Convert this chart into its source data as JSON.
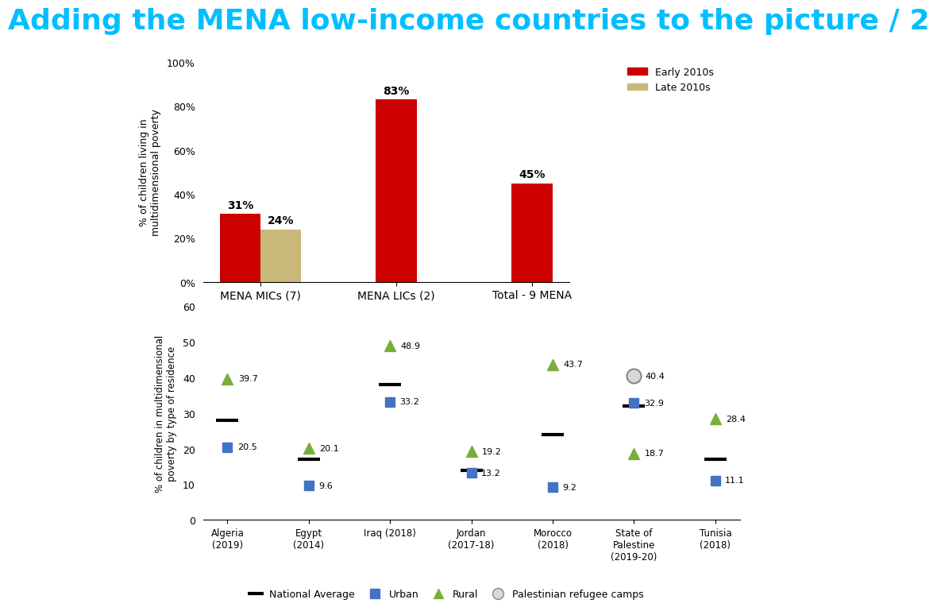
{
  "title": "Adding the MENA low-income countries to the picture / 2",
  "title_color": "#00BFFF",
  "title_fontsize": 26,
  "top_chart": {
    "categories": [
      "MENA MICs (7)",
      "MENA LICs (2)",
      "Total - 9 MENA"
    ],
    "early_2010s": [
      31,
      83,
      45
    ],
    "late_2010s": [
      24,
      null,
      null
    ],
    "early_color": "#CC0000",
    "late_color": "#C8B87A",
    "ylabel": "% of children living in\nmultidimensional poverty",
    "ylim": [
      0,
      100
    ],
    "yticks": [
      0,
      20,
      40,
      60,
      80,
      100
    ],
    "ytick_labels": [
      "0%",
      "20%",
      "40%",
      "60%",
      "80%",
      "100%"
    ],
    "bar_width": 0.3,
    "legend_early": "Early 2010s",
    "legend_late": "Late 2010s"
  },
  "bottom_chart": {
    "countries": [
      "Algeria\n(2019)",
      "Egypt\n(2014)",
      "Iraq (2018)",
      "Jordan\n(2017-18)",
      "Morocco\n(2018)",
      "State of\nPalestine\n(2019-20)",
      "Tunisia\n(2018)"
    ],
    "national_avg": [
      28,
      17,
      38,
      14,
      24,
      32,
      17
    ],
    "urban": [
      20.5,
      9.6,
      33.2,
      13.2,
      9.2,
      32.9,
      11.1
    ],
    "rural": [
      39.7,
      20.1,
      48.9,
      19.2,
      43.7,
      18.7,
      28.4
    ],
    "refugee_camps": [
      null,
      null,
      null,
      null,
      null,
      40.4,
      null
    ],
    "national_color": "#000000",
    "urban_color": "#4472C4",
    "rural_color": "#7AAE3A",
    "refugee_color": "#A0A0A0",
    "ylabel": "% of children in multidimensional\npoverty by type of residence",
    "ylim": [
      0,
      60
    ],
    "yticks": [
      0,
      10,
      20,
      30,
      40,
      50,
      60
    ]
  }
}
